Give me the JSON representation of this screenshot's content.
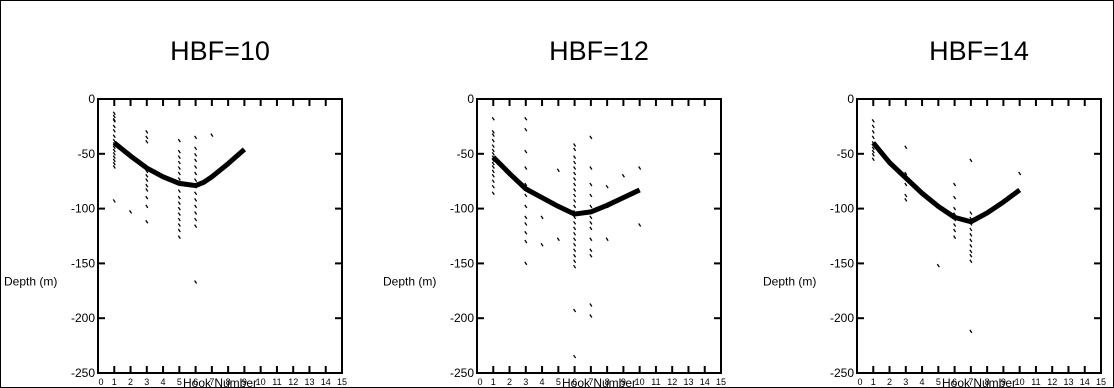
{
  "figure": {
    "chart_data": [
      {
        "type": "scatter",
        "title": "HBF=10",
        "xlabel": "Hook Number",
        "ylabel": "Depth (m)",
        "xlim": [
          0,
          15
        ],
        "ylim": [
          -250,
          0
        ],
        "xticks": [
          "0",
          "1",
          "2",
          "3",
          "4",
          "5",
          "6",
          "7",
          "8",
          "9",
          "10",
          "11",
          "12",
          "13",
          "14",
          "15"
        ],
        "yticks": [
          "0",
          "-50",
          "-100",
          "-150",
          "-200",
          "-250"
        ],
        "series": [
          {
            "kind": "scatter",
            "x": [
              1,
              1,
              1,
              1,
              1,
              1,
              1,
              1,
              1,
              1,
              1,
              1,
              1,
              1,
              1,
              1,
              1,
              2,
              3,
              3,
              3,
              3,
              3,
              3,
              3,
              3,
              3,
              3,
              3,
              3,
              5,
              5,
              5,
              5,
              5,
              5,
              5,
              5,
              5,
              5,
              5,
              5,
              5,
              5,
              5,
              5,
              5,
              6,
              6,
              6,
              6,
              6,
              6,
              6,
              6,
              6,
              6,
              6,
              6,
              6,
              6,
              6,
              7
            ],
            "y": [
              -16,
              -20,
              -25,
              -29,
              -34,
              -38,
              -41,
              -44,
              -47,
              -50,
              -53,
              -56,
              -59,
              -62,
              -93,
              -19,
              -13,
              -103,
              -30,
              -35,
              -39,
              -62,
              -66,
              -70,
              -74,
              -79,
              -83,
              -90,
              -98,
              -112,
              -38,
              -48,
              -53,
              -58,
              -63,
              -68,
              -73,
              -78,
              -84,
              -90,
              -95,
              -100,
              -105,
              -110,
              -115,
              -120,
              -126,
              -35,
              -45,
              -51,
              -56,
              -62,
              -68,
              -74,
              -80,
              -86,
              -92,
              -98,
              -104,
              -110,
              -116,
              -167,
              -33
            ]
          },
          {
            "kind": "line",
            "x": [
              1,
              2,
              3,
              4,
              5,
              5.5,
              6,
              6.5,
              7,
              8,
              9
            ],
            "y": [
              -40,
              -52,
              -63,
              -71,
              -77,
              -78,
              -79,
              -76,
              -71,
              -59,
              -46
            ]
          }
        ]
      },
      {
        "type": "scatter",
        "title": "HBF=12",
        "xlabel": "Hook Number",
        "ylabel": "Depth (m)",
        "xlim": [
          0,
          15
        ],
        "ylim": [
          -250,
          0
        ],
        "xticks": [
          "0",
          "1",
          "2",
          "3",
          "4",
          "5",
          "6",
          "7",
          "8",
          "9",
          "10",
          "11",
          "12",
          "13",
          "14",
          "15"
        ],
        "yticks": [
          "0",
          "-50",
          "-100",
          "-150",
          "-200",
          "-250"
        ],
        "series": [
          {
            "kind": "scatter",
            "x": [
              1,
              1,
              1,
              1,
              1,
              1,
              1,
              1,
              1,
              1,
              1,
              1,
              1,
              1,
              1,
              1,
              3,
              3,
              3,
              3,
              3,
              3,
              3,
              3,
              3,
              3,
              3,
              3,
              3,
              4,
              4,
              5,
              5,
              6,
              6,
              6,
              6,
              6,
              6,
              6,
              6,
              6,
              6,
              6,
              6,
              6,
              6,
              6,
              6,
              6,
              6,
              6,
              6,
              6,
              6,
              6,
              6,
              6,
              7,
              7,
              7,
              7,
              7,
              7,
              7,
              7,
              7,
              7,
              7,
              7,
              7,
              8,
              8,
              8,
              9,
              10,
              10
            ],
            "y": [
              -18,
              -30,
              -33,
              -38,
              -43,
              -47,
              -50,
              -53,
              -56,
              -59,
              -62,
              -66,
              -70,
              -75,
              -80,
              -86,
              -18,
              -28,
              -48,
              -63,
              -78,
              -80,
              -88,
              -98,
              -108,
              -114,
              -122,
              -130,
              -150,
              -108,
              -133,
              -65,
              -128,
              -42,
              -46,
              -53,
              -58,
              -63,
              -68,
              -73,
              -78,
              -83,
              -88,
              -93,
              -98,
              -103,
              -108,
              -113,
              -118,
              -123,
              -128,
              -133,
              -138,
              -143,
              -148,
              -153,
              -193,
              -235,
              -35,
              -63,
              -78,
              -88,
              -98,
              -108,
              -113,
              -118,
              -128,
              -138,
              -143,
              -188,
              -198,
              -80,
              -98,
              -128,
              -70,
              -63,
              -115
            ]
          },
          {
            "kind": "line",
            "x": [
              1,
              2,
              3,
              4,
              5,
              6,
              7,
              8,
              9,
              10
            ],
            "y": [
              -53,
              -68,
              -82,
              -90,
              -98,
              -105,
              -103,
              -97,
              -90,
              -83
            ]
          }
        ]
      },
      {
        "type": "scatter",
        "title": "HBF=14",
        "xlabel": "Hook Number",
        "ylabel": "Depth (m)",
        "xlim": [
          0,
          15
        ],
        "ylim": [
          -250,
          0
        ],
        "xticks": [
          "0",
          "1",
          "2",
          "3",
          "4",
          "5",
          "6",
          "7",
          "8",
          "9",
          "10",
          "11",
          "12",
          "13",
          "14",
          "15"
        ],
        "yticks": [
          "0",
          "-50",
          "-100",
          "-150",
          "-200",
          "-250"
        ],
        "series": [
          {
            "kind": "scatter",
            "x": [
              1,
              1,
              1,
              1,
              1,
              1,
              1,
              1,
              1,
              3,
              3,
              3,
              3,
              3,
              5,
              6,
              6,
              6,
              6,
              6,
              6,
              6,
              6,
              7,
              7,
              7,
              7,
              7,
              7,
              7,
              7,
              7,
              7,
              7,
              7,
              10
            ],
            "y": [
              -20,
              -25,
              -30,
              -35,
              -40,
              -45,
              -48,
              -51,
              -55,
              -44,
              -68,
              -78,
              -88,
              -92,
              -152,
              -78,
              -90,
              -100,
              -105,
              -110,
              -115,
              -120,
              -126,
              -56,
              -104,
              -109,
              -114,
              -119,
              -124,
              -129,
              -134,
              -139,
              -143,
              -148,
              -212,
              -68
            ]
          },
          {
            "kind": "line",
            "x": [
              1,
              2,
              3,
              4,
              5,
              6,
              7,
              8,
              9,
              10
            ],
            "y": [
              -40,
              -58,
              -72,
              -86,
              -98,
              -108,
              -112,
              -104,
              -94,
              -83
            ]
          }
        ]
      }
    ]
  }
}
